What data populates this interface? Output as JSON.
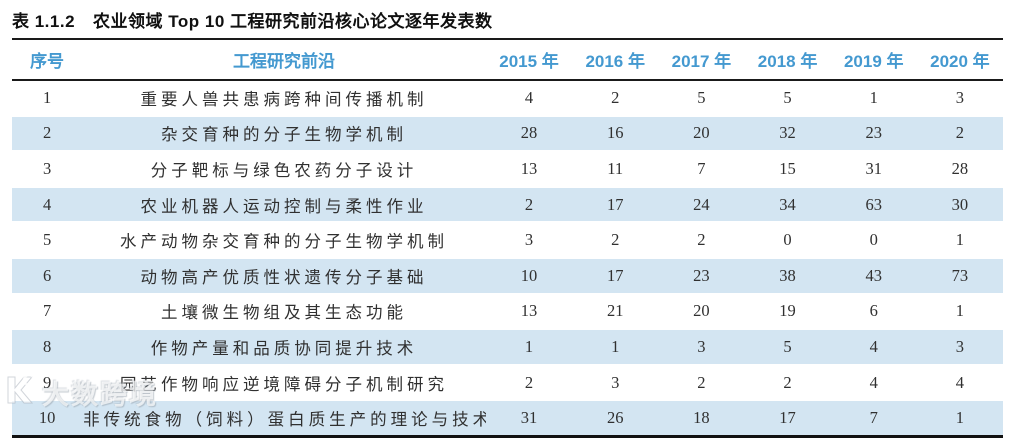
{
  "title": {
    "label": "表 1.1.2",
    "text": "农业领域 Top 10 工程研究前沿核心论文逐年发表数"
  },
  "table": {
    "columns": [
      "序号",
      "工程研究前沿",
      "2015 年",
      "2016 年",
      "2017 年",
      "2018 年",
      "2019 年",
      "2020 年"
    ],
    "rows": [
      {
        "no": "1",
        "front": "重要人兽共患病跨种间传播机制",
        "values": [
          "4",
          "2",
          "5",
          "5",
          "1",
          "3"
        ]
      },
      {
        "no": "2",
        "front": "杂交育种的分子生物学机制",
        "values": [
          "28",
          "16",
          "20",
          "32",
          "23",
          "2"
        ]
      },
      {
        "no": "3",
        "front": "分子靶标与绿色农药分子设计",
        "values": [
          "13",
          "11",
          "7",
          "15",
          "31",
          "28"
        ]
      },
      {
        "no": "4",
        "front": "农业机器人运动控制与柔性作业",
        "values": [
          "2",
          "17",
          "24",
          "34",
          "63",
          "30"
        ]
      },
      {
        "no": "5",
        "front": "水产动物杂交育种的分子生物学机制",
        "values": [
          "3",
          "2",
          "2",
          "0",
          "0",
          "1"
        ]
      },
      {
        "no": "6",
        "front": "动物高产优质性状遗传分子基础",
        "values": [
          "10",
          "17",
          "23",
          "38",
          "43",
          "73"
        ]
      },
      {
        "no": "7",
        "front": "土壤微生物组及其生态功能",
        "values": [
          "13",
          "21",
          "20",
          "19",
          "6",
          "1"
        ]
      },
      {
        "no": "8",
        "front": "作物产量和品质协同提升技术",
        "values": [
          "1",
          "1",
          "3",
          "5",
          "4",
          "3"
        ]
      },
      {
        "no": "9",
        "front": "园艺作物响应逆境障碍分子机制研究",
        "values": [
          "2",
          "3",
          "2",
          "2",
          "4",
          "4"
        ]
      },
      {
        "no": "10",
        "front": "非传统食物（饲料）蛋白质生产的理论与技术",
        "values": [
          "31",
          "26",
          "18",
          "17",
          "7",
          "1"
        ]
      }
    ]
  },
  "watermark": {
    "icon": "watermark-logo-icon",
    "text": "大数跨境"
  },
  "colors": {
    "header_text": "#4499d0",
    "stripe_row": "#d3e5f2",
    "rule": "#1a1a1a",
    "body_text": "#303030"
  }
}
